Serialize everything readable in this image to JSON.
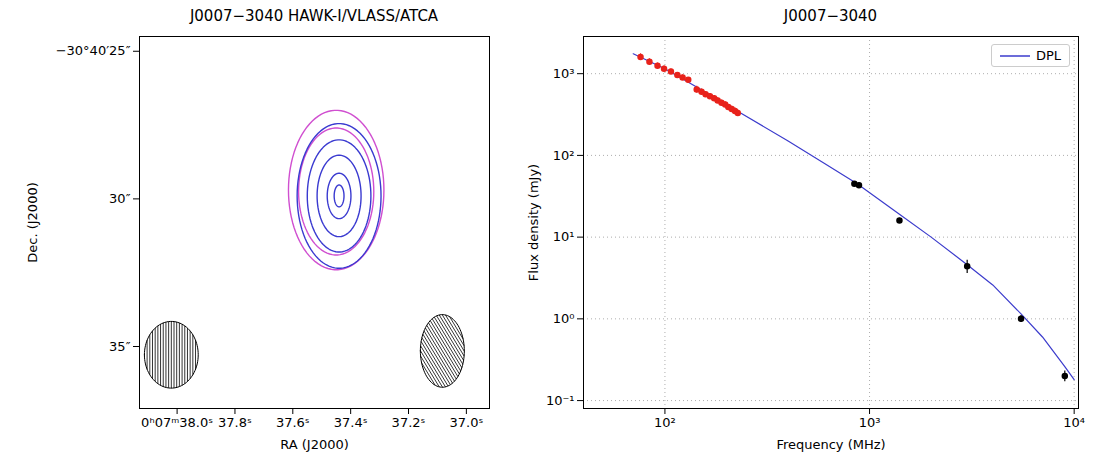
{
  "chart_data": [
    {
      "type": "contour",
      "title": "J0007−3040 HAWK-I/VLASS/ATCA",
      "x_label": "RA (J2000)",
      "y_label": "Dec. (J2000)",
      "xlim": [
        38.13,
        36.92
      ],
      "ylim": [
        37.1,
        24.5
      ],
      "xticks": [
        {
          "value": 38.0,
          "label": "0ʰ07ᵐ38.0ˢ"
        },
        {
          "value": 37.8,
          "label": "37.8ˢ"
        },
        {
          "value": 37.6,
          "label": "37.6ˢ"
        },
        {
          "value": 37.4,
          "label": "37.4ˢ"
        },
        {
          "value": 37.2,
          "label": "37.2ˢ"
        },
        {
          "value": 37.0,
          "label": "37.0ˢ"
        }
      ],
      "yticks": [
        {
          "value": 25,
          "label": "−30°40′25″"
        },
        {
          "value": 30,
          "label": "30″"
        },
        {
          "value": 35,
          "label": "35″"
        }
      ],
      "series": [
        {
          "color": "#d04fd0",
          "ellipses": [
            {
              "x": 37.45,
              "y": 29.7,
              "rx": 0.165,
              "ry": 2.7
            },
            {
              "x": 37.45,
              "y": 29.75,
              "rx": 0.13,
              "ry": 2.15
            }
          ]
        },
        {
          "color": "#3a3ad0",
          "ellipses": [
            {
              "x": 37.44,
              "y": 29.9,
              "rx": 0.145,
              "ry": 2.45
            },
            {
              "x": 37.44,
              "y": 29.9,
              "rx": 0.11,
              "ry": 1.9
            },
            {
              "x": 37.44,
              "y": 29.9,
              "rx": 0.076,
              "ry": 1.38
            },
            {
              "x": 37.44,
              "y": 29.9,
              "rx": 0.041,
              "ry": 0.77
            },
            {
              "x": 37.44,
              "y": 29.9,
              "rx": 0.017,
              "ry": 0.37
            }
          ]
        }
      ],
      "beams": [
        {
          "x": 38.02,
          "y": 35.28,
          "rx": 0.093,
          "ry": 1.13
        },
        {
          "x": 37.083,
          "y": 35.15,
          "rx": 0.076,
          "ry": 1.23
        }
      ]
    },
    {
      "type": "line",
      "title": "J0007−3040",
      "x_label": "Frequency (MHz)",
      "y_label": "Flux density (mJy)",
      "log": true,
      "grid": true,
      "legend": "upper right",
      "xlim": [
        40,
        10500
      ],
      "ylim": [
        0.08,
        2850
      ],
      "xticks": [
        {
          "value": 100,
          "label": "10²"
        },
        {
          "value": 1000,
          "label": "10³"
        },
        {
          "value": 10000,
          "label": "10⁴"
        }
      ],
      "yticks": [
        {
          "value": 0.1,
          "label": "10⁻¹"
        },
        {
          "value": 1,
          "label": "10⁰"
        },
        {
          "value": 10,
          "label": "10¹"
        },
        {
          "value": 100,
          "label": "10²"
        },
        {
          "value": 1000,
          "label": "10³"
        }
      ],
      "series": [
        {
          "name": "DPL",
          "type": "line",
          "color": "#3b3bcc",
          "x": [
            70,
            100,
            150,
            230,
            400,
            600,
            870,
            1400,
            2000,
            3000,
            4000,
            5500,
            7000,
            9000,
            10000
          ],
          "values": [
            1750,
            1150,
            640,
            340,
            150,
            80,
            45,
            19,
            10,
            4.6,
            2.6,
            1.15,
            0.6,
            0.26,
            0.18
          ]
        },
        {
          "type": "scatter",
          "color": "#e8221b",
          "marker": "circle",
          "x": [
            76,
            84,
            92,
            99,
            107,
            115,
            122,
            130,
            143,
            151,
            158,
            166,
            174,
            181,
            189,
            197,
            204,
            212,
            220,
            227
          ],
          "values": [
            1600,
            1400,
            1250,
            1150,
            1060,
            960,
            900,
            840,
            640,
            600,
            560,
            530,
            500,
            470,
            440,
            420,
            390,
            370,
            350,
            330
          ],
          "errors": [
            150,
            120,
            100,
            90,
            80,
            70,
            65,
            60,
            60,
            50,
            45,
            42,
            40,
            38,
            35,
            33,
            31,
            30,
            30,
            30
          ]
        },
        {
          "type": "scatter",
          "color": "#000000",
          "marker": "circle",
          "x": [
            843,
            888,
            1400,
            3000,
            5500,
            9000
          ],
          "values": [
            45,
            43,
            16,
            4.4,
            1.0,
            0.2
          ],
          "errors": [
            3,
            3,
            1,
            0.8,
            0.1,
            0.03
          ]
        }
      ]
    }
  ]
}
